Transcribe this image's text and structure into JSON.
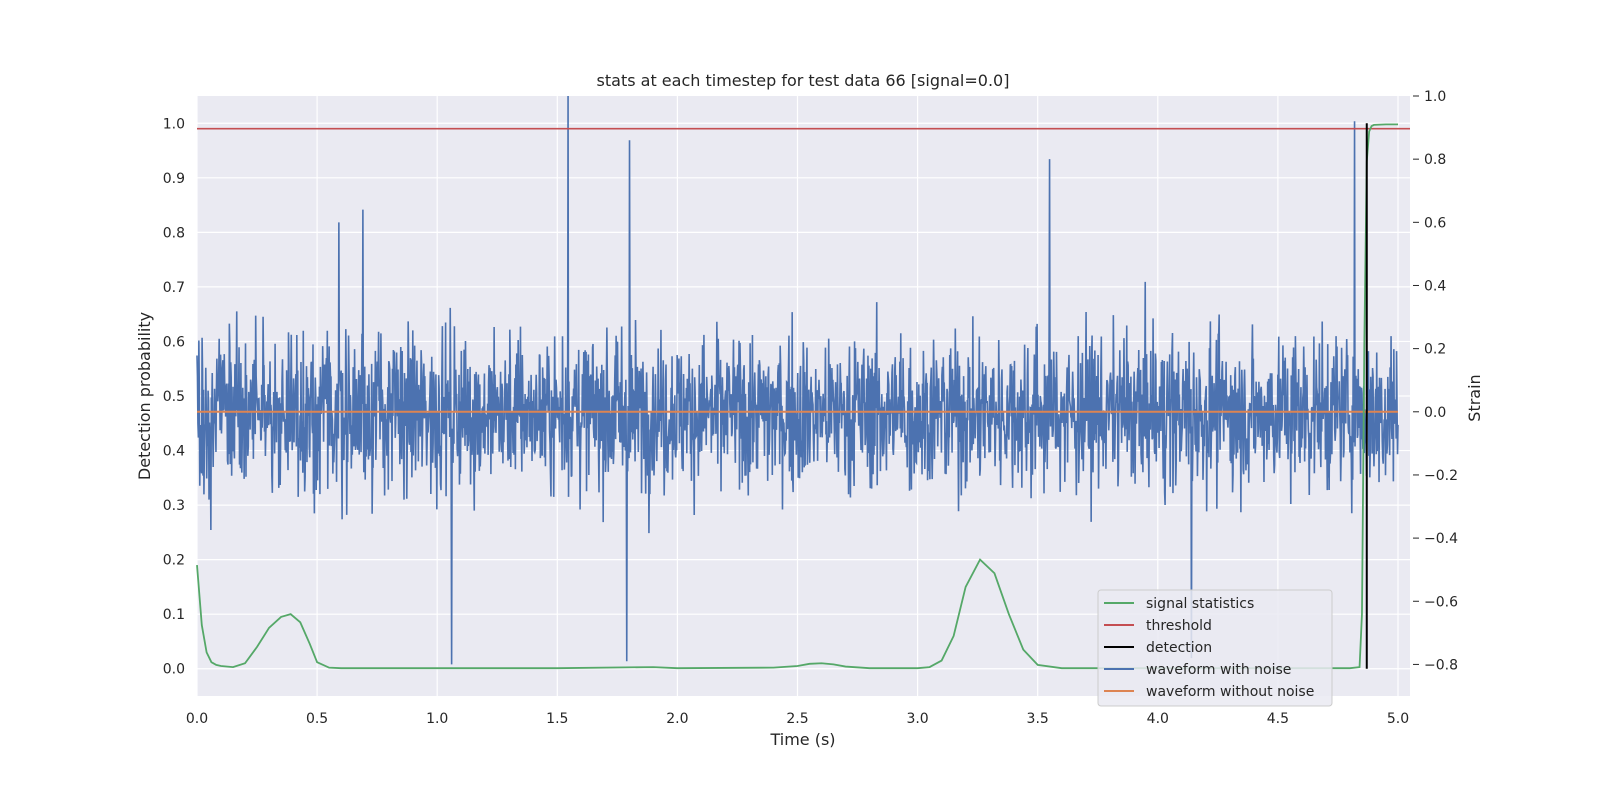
{
  "chart_data": {
    "type": "line",
    "title": "stats at each timestep for test data 66 [signal=0.0]",
    "xlabel": "Time (s)",
    "ylabel_left": "Detection probability",
    "ylabel_right": "Strain",
    "xlim": [
      0.0,
      5.05
    ],
    "ylim_left": [
      -0.05,
      1.05
    ],
    "ylim_right": [
      -0.9,
      1.0
    ],
    "x_ticks": [
      0.0,
      0.5,
      1.0,
      1.5,
      2.0,
      2.5,
      3.0,
      3.5,
      4.0,
      4.5,
      5.0
    ],
    "x_tick_labels": [
      "0.0",
      "0.5",
      "1.0",
      "1.5",
      "2.0",
      "2.5",
      "3.0",
      "3.5",
      "4.0",
      "4.5",
      "5.0"
    ],
    "y_left_ticks": [
      0.0,
      0.1,
      0.2,
      0.3,
      0.4,
      0.5,
      0.6,
      0.7,
      0.8,
      0.9,
      1.0
    ],
    "y_left_tick_labels": [
      "0.0",
      "0.1",
      "0.2",
      "0.3",
      "0.4",
      "0.5",
      "0.6",
      "0.7",
      "0.8",
      "0.9",
      "1.0"
    ],
    "y_right_ticks": [
      -0.8,
      -0.6,
      -0.4,
      -0.2,
      0.0,
      0.2,
      0.4,
      0.6,
      0.8,
      1.0
    ],
    "y_right_tick_labels": [
      "−0.8",
      "−0.6",
      "−0.4",
      "−0.2",
      "0.0",
      "0.2",
      "0.4",
      "0.6",
      "0.8",
      "1.0"
    ],
    "grid": true,
    "legend_position": "lower-right",
    "series": [
      {
        "name": "signal statistics",
        "axis": "left",
        "color": "#55a868",
        "x": [
          0.0,
          0.02,
          0.04,
          0.06,
          0.08,
          0.1,
          0.15,
          0.2,
          0.25,
          0.3,
          0.35,
          0.39,
          0.43,
          0.47,
          0.5,
          0.55,
          0.6,
          0.8,
          1.0,
          1.5,
          1.9,
          2.0,
          2.4,
          2.5,
          2.55,
          2.6,
          2.65,
          2.7,
          2.8,
          3.0,
          3.05,
          3.1,
          3.15,
          3.2,
          3.26,
          3.32,
          3.38,
          3.44,
          3.5,
          3.6,
          4.0,
          4.5,
          4.8,
          4.84,
          4.85,
          4.86,
          4.87,
          4.88,
          4.89,
          4.9,
          4.95,
          5.0
        ],
        "y": [
          0.19,
          0.08,
          0.03,
          0.012,
          0.007,
          0.005,
          0.003,
          0.01,
          0.04,
          0.075,
          0.095,
          0.1,
          0.085,
          0.045,
          0.012,
          0.002,
          0.001,
          0.001,
          0.001,
          0.001,
          0.003,
          0.001,
          0.002,
          0.005,
          0.009,
          0.01,
          0.008,
          0.004,
          0.001,
          0.001,
          0.003,
          0.015,
          0.06,
          0.15,
          0.2,
          0.175,
          0.1,
          0.035,
          0.007,
          0.001,
          0.001,
          0.001,
          0.001,
          0.003,
          0.1,
          0.6,
          0.93,
          0.985,
          0.995,
          0.997,
          0.998,
          0.998
        ]
      },
      {
        "name": "threshold",
        "axis": "left",
        "color": "#c44e52",
        "y_constant": 0.99
      },
      {
        "name": "detection",
        "axis": "left",
        "color": "#000000",
        "x_constant": 4.87,
        "y_range": [
          0.0,
          1.0
        ]
      },
      {
        "name": "waveform with noise",
        "axis": "right",
        "color": "#4c72b0",
        "description_stats": {
          "x_start": 0.0,
          "x_end": 5.0,
          "typical_amplitude": 0.17,
          "max": 1.0,
          "min": -0.82
        },
        "peaks": [
          {
            "x": 1.545,
            "y": 1.0
          },
          {
            "x": 1.8,
            "y": 0.86
          },
          {
            "x": 3.55,
            "y": 0.8
          },
          {
            "x": 0.69,
            "y": 0.64
          },
          {
            "x": 0.59,
            "y": 0.6
          },
          {
            "x": 4.82,
            "y": 0.92
          },
          {
            "x": 1.06,
            "y": -0.8
          },
          {
            "x": 1.79,
            "y": -0.79
          },
          {
            "x": 4.14,
            "y": -0.78
          }
        ]
      },
      {
        "name": "waveform without noise",
        "axis": "right",
        "color": "#dd8452",
        "y_constant": 0.0
      }
    ]
  }
}
